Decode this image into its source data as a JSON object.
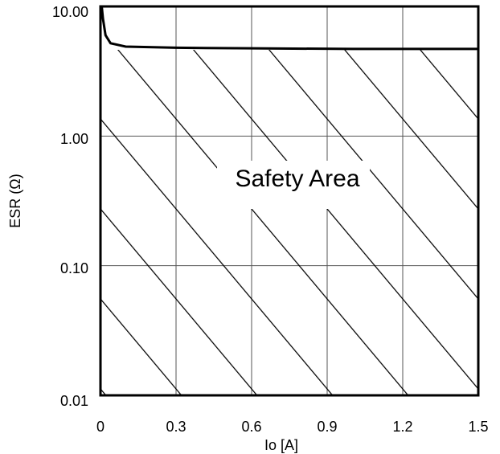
{
  "chart_data": {
    "type": "line",
    "xlabel": "Io [A]",
    "ylabel": "ESR (Ω)",
    "annotation": "Safety Area",
    "x": [
      0.005,
      0.01,
      0.02,
      0.04,
      0.1,
      0.3,
      0.6,
      1.0,
      1.5
    ],
    "values": [
      10,
      8,
      6,
      5.2,
      4.9,
      4.8,
      4.75,
      4.7,
      4.7
    ],
    "color": "#000000",
    "xlim": [
      0,
      1.5
    ],
    "xticks": [
      0,
      0.3,
      0.6,
      0.9,
      1.2,
      1.5
    ],
    "ylim": [
      0.01,
      10
    ],
    "log_y": true,
    "yticks": [
      {
        "value": 0.01,
        "label": "0.01"
      },
      {
        "value": 0.1,
        "label": "0.10"
      },
      {
        "value": 1,
        "label": "1.00"
      },
      {
        "value": 10,
        "label": "10.00"
      }
    ],
    "grid": true
  }
}
